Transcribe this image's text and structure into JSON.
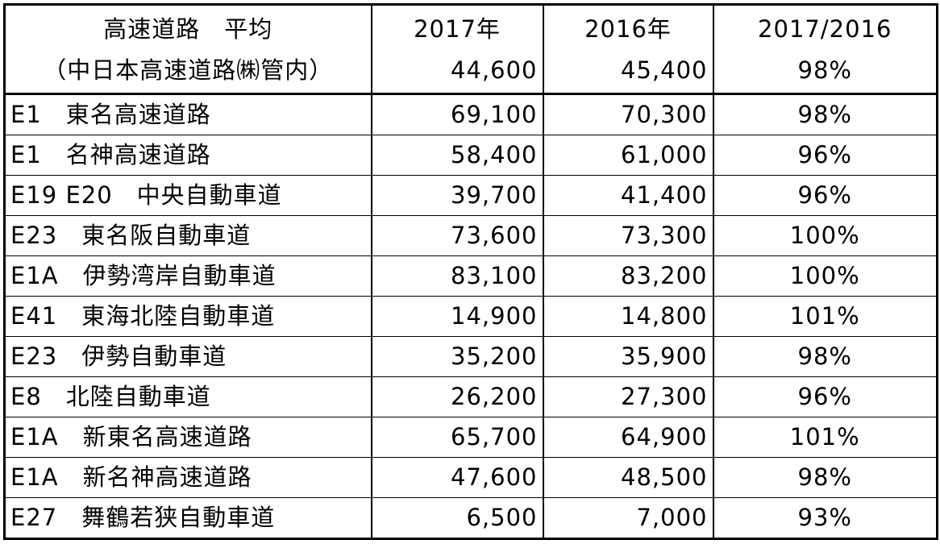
{
  "header": {
    "title": "高速道路　平均",
    "subtitle": "（中日本高速道路㈱管内）",
    "col_2017": "2017年",
    "col_2016": "2016年",
    "col_ratio": "2017/2016",
    "avg_2017": "44,600",
    "avg_2016": "45,400",
    "avg_ratio": "98%"
  },
  "rows": [
    {
      "name": "E1　東名高速道路",
      "v2017": "69,100",
      "v2016": "70,300",
      "ratio": "98%"
    },
    {
      "name": "E1　名神高速道路",
      "v2017": "58,400",
      "v2016": "61,000",
      "ratio": "96%"
    },
    {
      "name": "E19 E20　中央自動車道",
      "v2017": "39,700",
      "v2016": "41,400",
      "ratio": "96%"
    },
    {
      "name": "E23　東名阪自動車道",
      "v2017": "73,600",
      "v2016": "73,300",
      "ratio": "100%"
    },
    {
      "name": "E1A　伊勢湾岸自動車道",
      "v2017": "83,100",
      "v2016": "83,200",
      "ratio": "100%"
    },
    {
      "name": "E41　東海北陸自動車道",
      "v2017": "14,900",
      "v2016": "14,800",
      "ratio": "101%"
    },
    {
      "name": "E23　伊勢自動車道",
      "v2017": "35,200",
      "v2016": "35,900",
      "ratio": "98%"
    },
    {
      "name": "E8　北陸自動車道",
      "v2017": "26,200",
      "v2016": "27,300",
      "ratio": "96%"
    },
    {
      "name": "E1A　新東名高速道路",
      "v2017": "65,700",
      "v2016": "64,900",
      "ratio": "101%"
    },
    {
      "name": "E1A　新名神高速道路",
      "v2017": "47,600",
      "v2016": "48,500",
      "ratio": "98%"
    },
    {
      "name": "E27　舞鶴若狭自動車道",
      "v2017": "6,500",
      "v2016": "7,000",
      "ratio": "93%"
    }
  ]
}
